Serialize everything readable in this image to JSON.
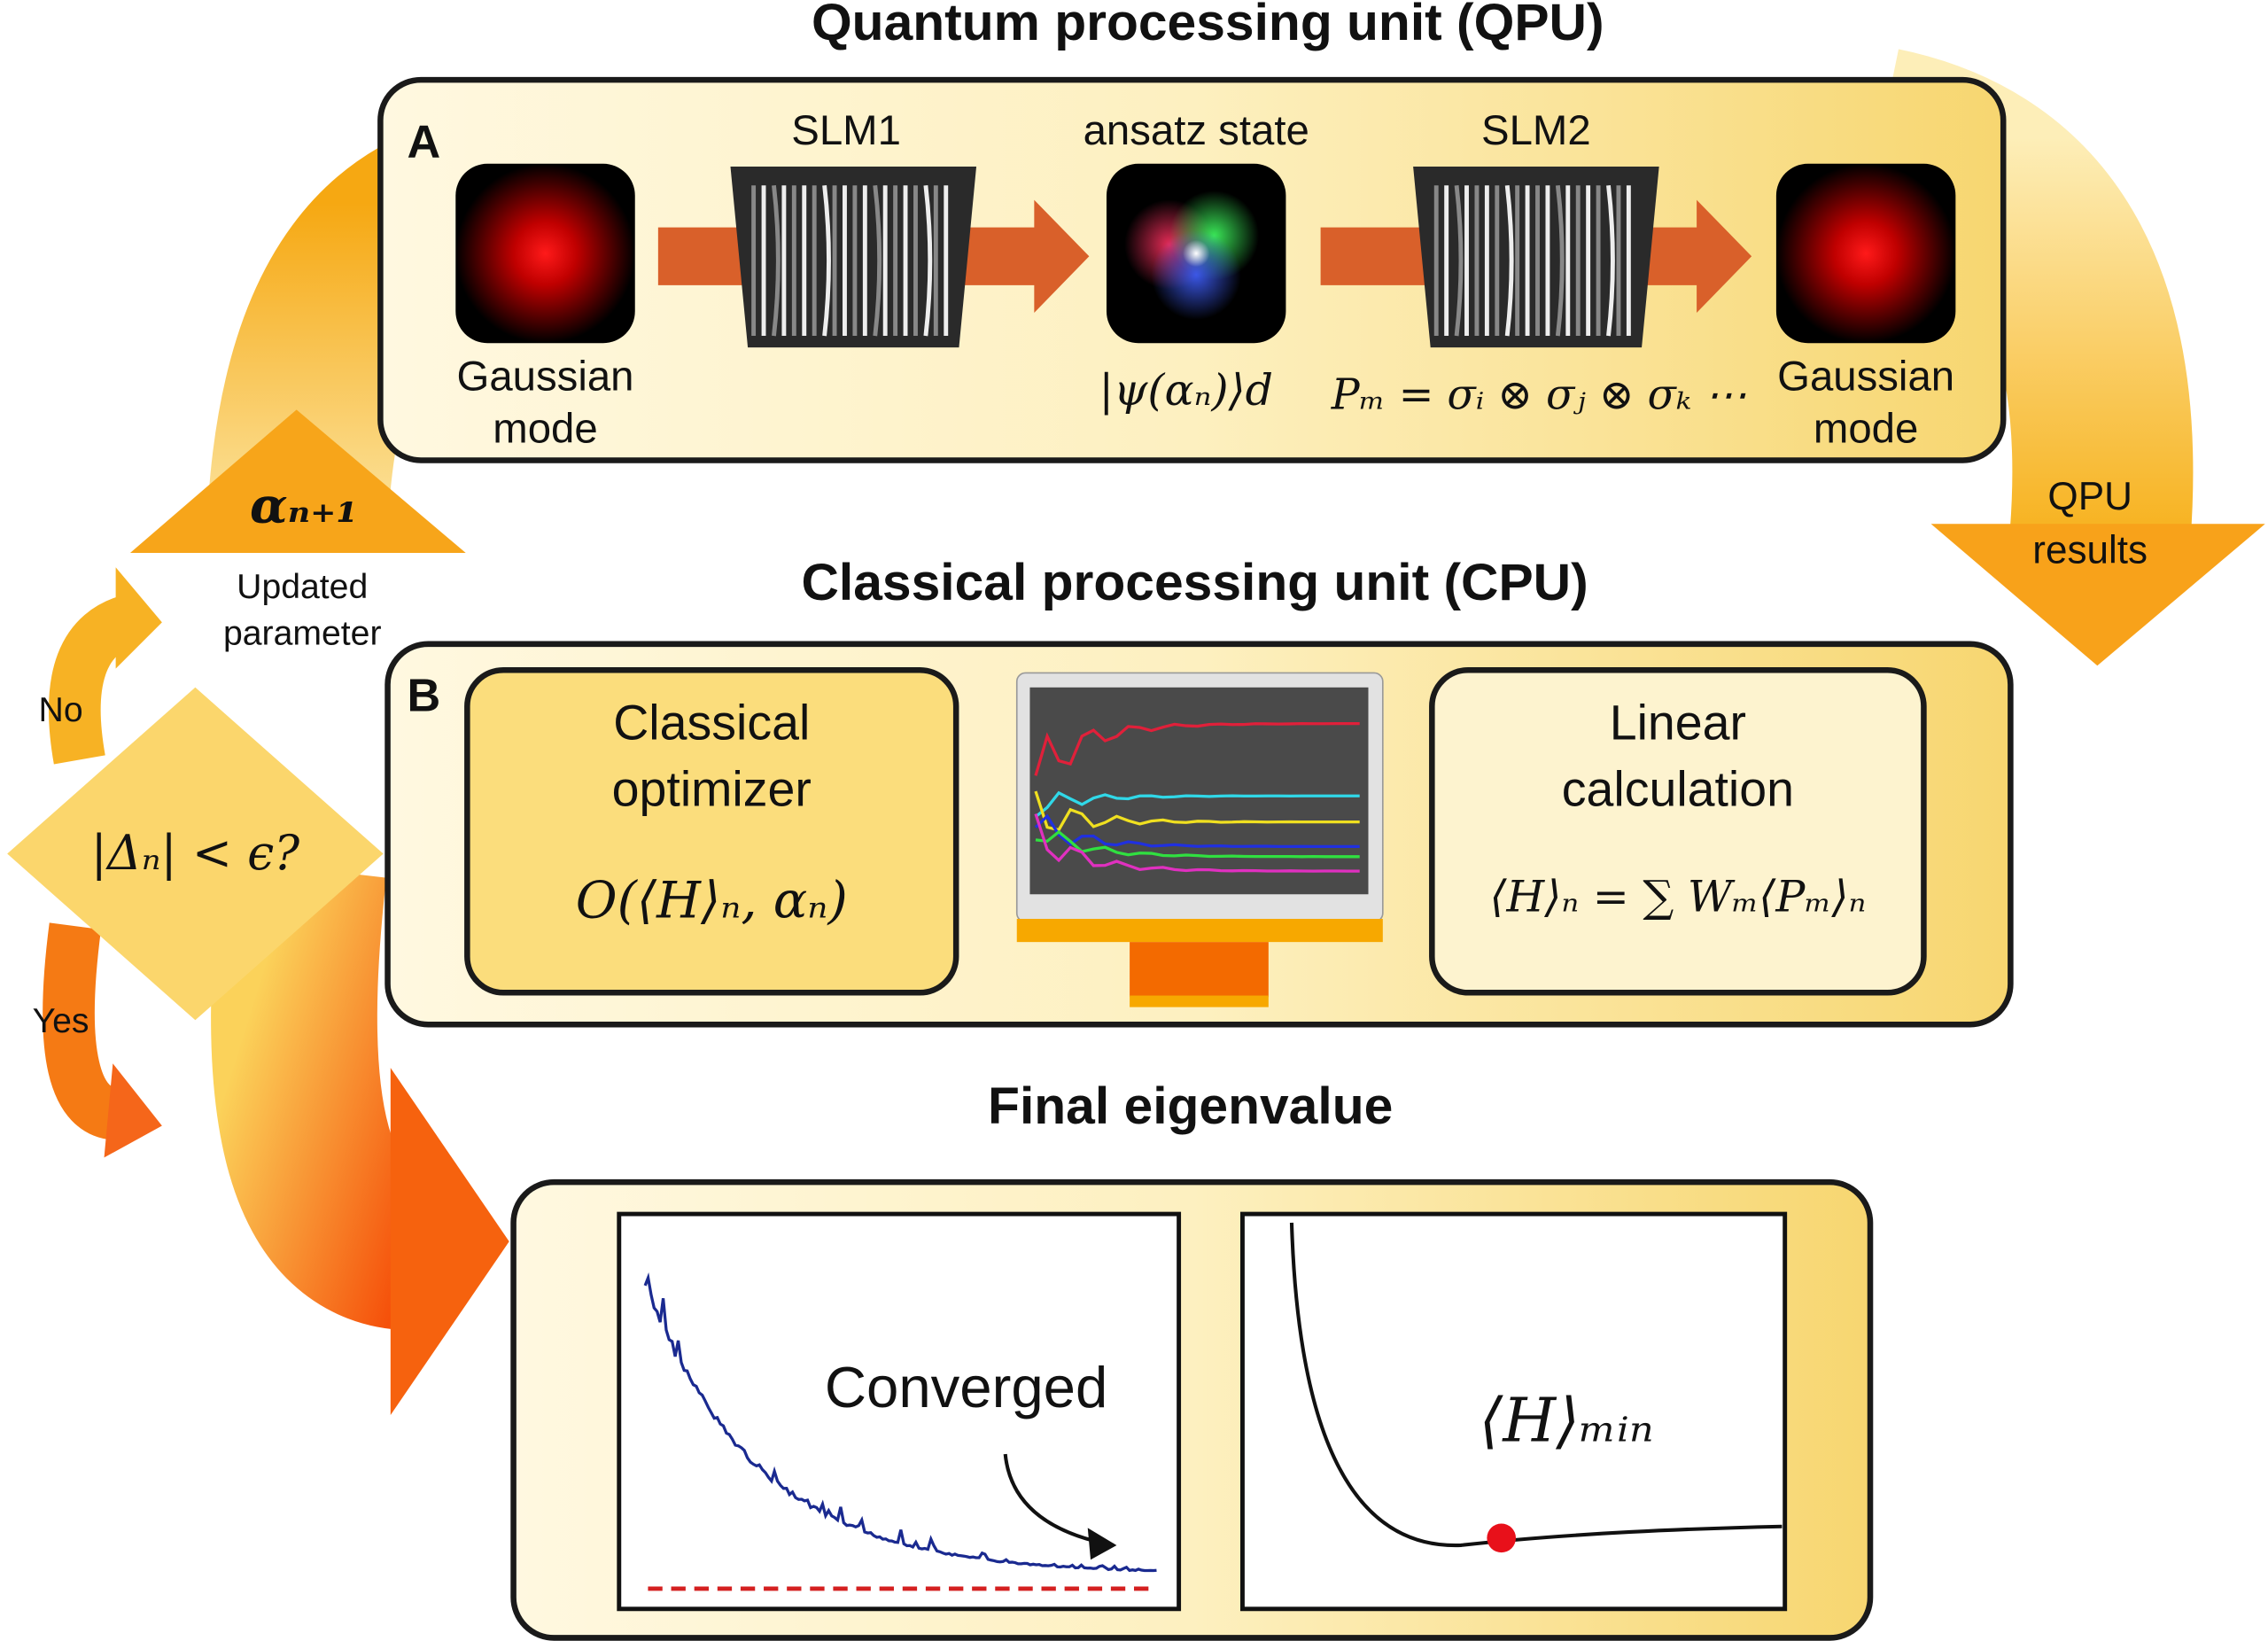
{
  "qpu": {
    "title": "Quantum processing unit (QPU)",
    "panel_label": "A",
    "input_label": [
      "Gaussian",
      "mode"
    ],
    "slm1": "SLM1",
    "ansatz_label": "ansatz state",
    "slm2": "SLM2",
    "ansatz_formula": "|ψ(αₙ)⟩d",
    "measurement": "Pₘ = σᵢ ⊗ σⱼ ⊗ σₖ ⋯",
    "output_label": [
      "Gaussian",
      "mode"
    ]
  },
  "loop": {
    "parameter": "αₙ₊₁",
    "parameter_label": [
      "Updated",
      "parameter"
    ],
    "results_label": [
      "QPU",
      "results"
    ],
    "condition": "|Δₙ| < ϵ?",
    "no": "No",
    "yes": "Yes"
  },
  "cpu": {
    "title": "Classical processing unit (CPU)",
    "panel_label": "B",
    "optimizer_label": [
      "Classical",
      "optimizer"
    ],
    "optimizer_formula": "O(⟨H⟩ₙ, αₙ)",
    "linear_label": [
      "Linear",
      "calculation"
    ],
    "linear_formula": "⟨H⟩ₙ = ∑ Wₘ⟨Pₘ⟩ₙ"
  },
  "final": {
    "title": "Final eigenvalue",
    "converged": "Converged",
    "minimum": "⟨H⟩ₘᵢₙ"
  }
}
